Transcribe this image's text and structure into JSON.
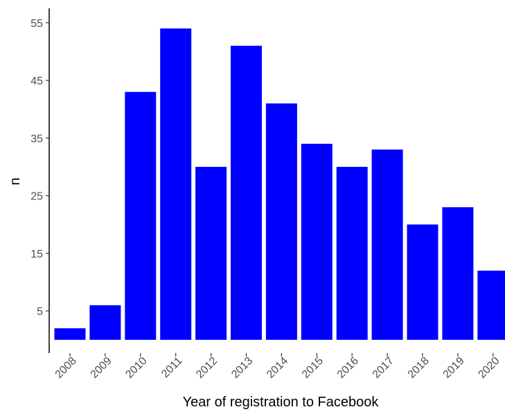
{
  "chart_data": {
    "type": "bar",
    "categories": [
      "2008",
      "2009",
      "2010",
      "2011",
      "2012",
      "2013",
      "2014",
      "2015",
      "2016",
      "2017",
      "2018",
      "2019",
      "2020"
    ],
    "values": [
      2,
      6,
      43,
      54,
      30,
      51,
      41,
      34,
      30,
      33,
      20,
      23,
      12
    ],
    "xlabel": "Year of registration to Facebook",
    "ylabel": "n",
    "yticks": [
      5,
      15,
      25,
      35,
      45,
      55
    ],
    "ylim": [
      -2.3,
      57.5
    ],
    "grid": false,
    "bar_color": "#0000ff",
    "axis_color": "#000000",
    "tick_label_color": "#4d4d4d"
  }
}
